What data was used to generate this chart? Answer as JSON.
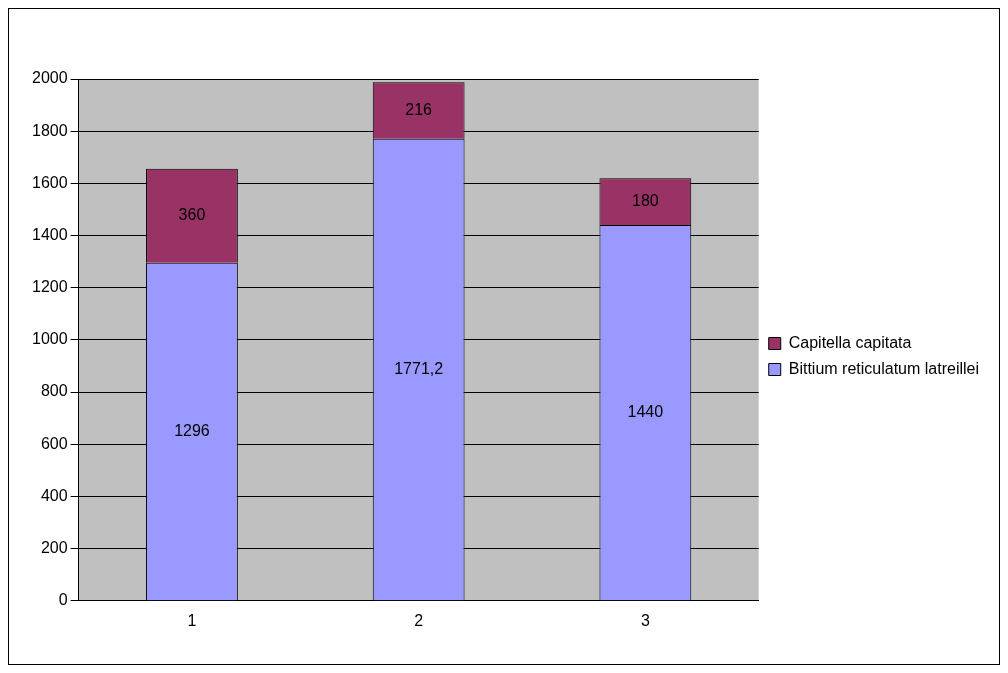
{
  "chart_data": {
    "type": "bar",
    "stacked": true,
    "categories": [
      "1",
      "2",
      "3"
    ],
    "series": [
      {
        "name": "Bittium reticulatum latreillei",
        "color": "#9999ff",
        "values": [
          1296,
          1771.2,
          1440
        ],
        "value_labels": [
          "1296",
          "1771,2",
          "1440"
        ]
      },
      {
        "name": "Capitella capitata",
        "color": "#993366",
        "values": [
          360,
          216,
          180
        ],
        "value_labels": [
          "360",
          "216",
          "180"
        ]
      }
    ],
    "ylim": [
      0,
      2000
    ],
    "yticks": [
      0,
      200,
      400,
      600,
      800,
      1000,
      1200,
      1400,
      1600,
      1800,
      2000
    ],
    "grid": "y",
    "legend": "right"
  }
}
